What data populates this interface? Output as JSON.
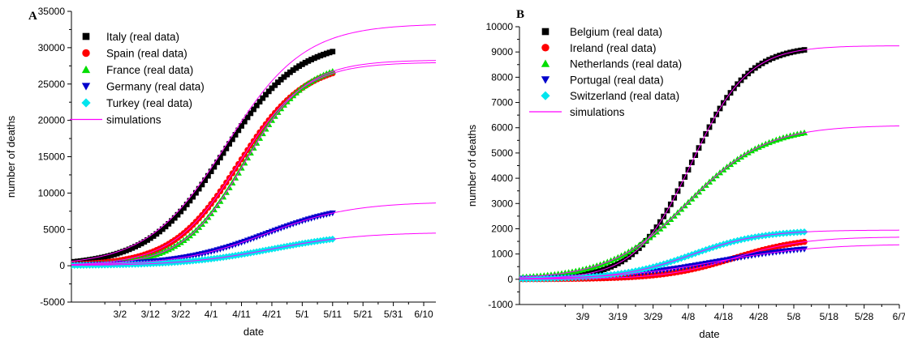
{
  "chart_data": [
    {
      "type": "line",
      "panel_label": "A",
      "xlabel": "date",
      "ylabel": "number of deaths",
      "x_tick_labels": [
        "3/2",
        "3/12",
        "3/22",
        "4/1",
        "4/11",
        "4/21",
        "5/1",
        "5/11",
        "5/21",
        "5/31",
        "6/10"
      ],
      "x_tick_days": [
        61,
        71,
        81,
        91,
        101,
        111,
        121,
        131,
        141,
        151,
        161
      ],
      "xlim_days": [
        45,
        165
      ],
      "ylim": [
        -5000,
        35000
      ],
      "y_ticks": [
        -5000,
        0,
        5000,
        10000,
        15000,
        20000,
        25000,
        30000,
        35000
      ],
      "legend_position": "top-left",
      "grid": false,
      "series": [
        {
          "name": "Italy (real data)",
          "marker": "square",
          "color": "#000000",
          "final": 31000,
          "midpoint_day": 95,
          "rate": 0.082,
          "start_day": 45,
          "end_day": 131
        },
        {
          "name": "Spain (real data)",
          "marker": "circle",
          "color": "#ff0000",
          "final": 28000,
          "midpoint_day": 100,
          "rate": 0.092,
          "start_day": 45,
          "end_day": 131
        },
        {
          "name": "France (real data)",
          "marker": "triangle-up",
          "color": "#00dd00",
          "final": 28300,
          "midpoint_day": 102,
          "rate": 0.098,
          "start_day": 45,
          "end_day": 131
        },
        {
          "name": "Germany (real data)",
          "marker": "triangle-down",
          "color": "#0000cc",
          "final": 8800,
          "midpoint_day": 109,
          "rate": 0.07,
          "start_day": 45,
          "end_day": 131
        },
        {
          "name": "Turkey (real data)",
          "marker": "diamond",
          "color": "#00e5ee",
          "final": 4600,
          "midpoint_day": 111,
          "rate": 0.068,
          "start_day": 45,
          "end_day": 131
        }
      ],
      "simulation": {
        "name": "simulations",
        "color": "#ff00ff",
        "curves": [
          {
            "final": 33300,
            "midpoint_day": 96,
            "rate": 0.078
          },
          {
            "final": 28000,
            "midpoint_day": 100,
            "rate": 0.092
          },
          {
            "final": 28300,
            "midpoint_day": 102,
            "rate": 0.098
          },
          {
            "final": 8800,
            "midpoint_day": 109,
            "rate": 0.07
          },
          {
            "final": 4600,
            "midpoint_day": 111,
            "rate": 0.068
          }
        ],
        "start_day": 45,
        "end_day": 165
      }
    },
    {
      "type": "line",
      "panel_label": "B",
      "xlabel": "date",
      "ylabel": "number of deaths",
      "x_tick_labels": [
        "3/9",
        "3/19",
        "3/29",
        "4/8",
        "4/18",
        "4/28",
        "5/8",
        "5/18",
        "5/28",
        "6/7"
      ],
      "x_tick_days": [
        68,
        78,
        88,
        98,
        108,
        118,
        128,
        138,
        148,
        158
      ],
      "xlim_days": [
        50,
        158
      ],
      "ylim": [
        -1000,
        10000
      ],
      "y_ticks": [
        -1000,
        0,
        1000,
        2000,
        3000,
        4000,
        5000,
        6000,
        7000,
        8000,
        9000,
        10000
      ],
      "legend_position": "top-left",
      "grid": false,
      "series": [
        {
          "name": "Belgium (real data)",
          "marker": "square",
          "color": "#000000",
          "final": 9250,
          "midpoint_day": 99,
          "rate": 0.125,
          "start_day": 50,
          "end_day": 131
        },
        {
          "name": "Ireland (real data)",
          "marker": "circle",
          "color": "#ff0000",
          "final": 1680,
          "midpoint_day": 111,
          "rate": 0.1,
          "start_day": 50,
          "end_day": 131
        },
        {
          "name": "Netherlands (real data)",
          "marker": "triangle-up",
          "color": "#00dd00",
          "final": 6100,
          "midpoint_day": 98,
          "rate": 0.09,
          "start_day": 50,
          "end_day": 131
        },
        {
          "name": "Portugal (real data)",
          "marker": "triangle-down",
          "color": "#0000cc",
          "final": 1400,
          "midpoint_day": 106,
          "rate": 0.07,
          "start_day": 50,
          "end_day": 131
        },
        {
          "name": "Switzerland (real data)",
          "marker": "diamond",
          "color": "#00e5ee",
          "final": 1950,
          "midpoint_day": 99,
          "rate": 0.1,
          "start_day": 50,
          "end_day": 131
        }
      ],
      "simulation": {
        "name": "simulations",
        "color": "#ff00ff",
        "curves": [
          {
            "final": 9250,
            "midpoint_day": 99,
            "rate": 0.125
          },
          {
            "final": 1680,
            "midpoint_day": 111,
            "rate": 0.1
          },
          {
            "final": 6100,
            "midpoint_day": 98,
            "rate": 0.09
          },
          {
            "final": 1400,
            "midpoint_day": 106,
            "rate": 0.07
          },
          {
            "final": 1950,
            "midpoint_day": 99,
            "rate": 0.1
          }
        ],
        "start_day": 50,
        "end_day": 158
      }
    }
  ]
}
